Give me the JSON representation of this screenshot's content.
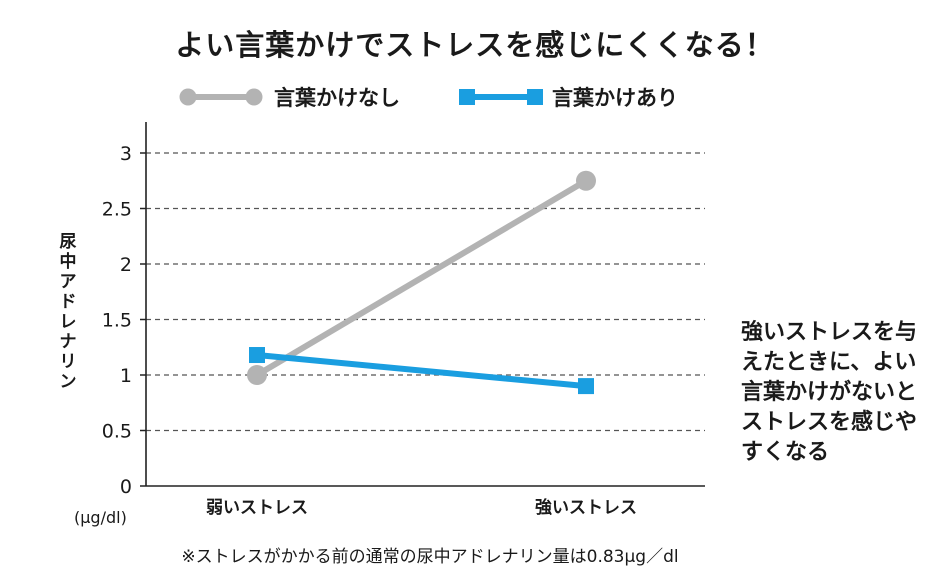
{
  "title": "よい言葉かけでストレスを感じにくくなる！",
  "legend": [
    {
      "label": "言葉かけなし",
      "color": "#b3b3b3",
      "marker": "circle"
    },
    {
      "label": "言葉かけあり",
      "color": "#1a9ee0",
      "marker": "square"
    }
  ],
  "chart_data": {
    "type": "line",
    "categories": [
      "弱いストレス",
      "強いストレス"
    ],
    "series": [
      {
        "name": "言葉かけなし",
        "values": [
          1.0,
          2.75
        ],
        "color": "#b3b3b3",
        "marker": "circle"
      },
      {
        "name": "言葉かけあり",
        "values": [
          1.18,
          0.9
        ],
        "color": "#1a9ee0",
        "marker": "square"
      }
    ],
    "ylabel": "尿中アドレナリン",
    "yunit": "(μg/dl)",
    "ylim": [
      0,
      3
    ],
    "yticks": [
      "0",
      "0.5",
      "1",
      "1.5",
      "2",
      "2.5",
      "3"
    ],
    "yticks_values": [
      0,
      0.5,
      1,
      1.5,
      2,
      2.5,
      3
    ],
    "grid": "dashed-horizontal",
    "legend_position": "top"
  },
  "side_note": "強いストレスを与えたときに、よい言葉かけがないとストレスを感じやすくなる",
  "footnote": "※ストレスがかかる前の通常の尿中アドレナリン量は0.83μg／dl"
}
